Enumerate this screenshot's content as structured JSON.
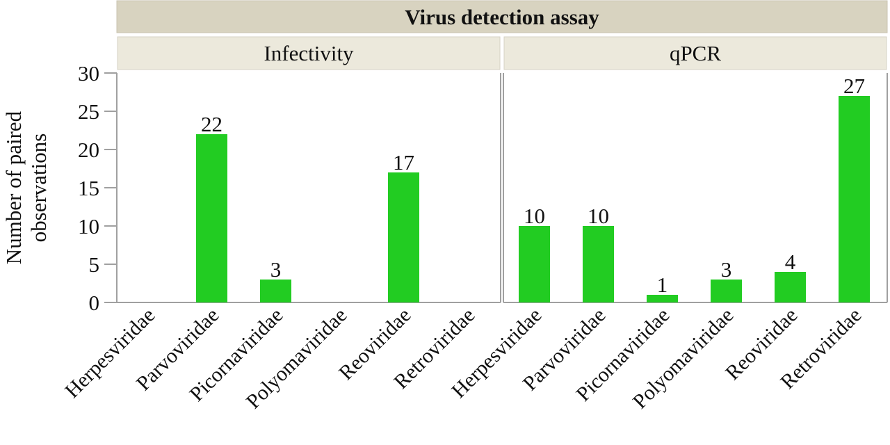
{
  "chart_data": {
    "type": "bar",
    "title": "Virus detection assay",
    "ylabel": "Number of paired observations",
    "ylabel_lines": [
      "Number of paired",
      "observations"
    ],
    "xlabel": "",
    "ylim": [
      0,
      30
    ],
    "yticks": [
      0,
      5,
      10,
      15,
      20,
      25,
      30
    ],
    "bar_color": "#22cc22",
    "categories": [
      "Herpesviridae",
      "Parvoviridae",
      "Picornaviridae",
      "Polyomaviridae",
      "Reoviridae",
      "Retroviridae"
    ],
    "panels": [
      {
        "name": "Infectivity",
        "values": [
          0,
          22,
          3,
          0,
          17,
          0
        ]
      },
      {
        "name": "qPCR",
        "values": [
          10,
          10,
          1,
          3,
          4,
          27
        ]
      }
    ],
    "grid": false,
    "legend": "none"
  },
  "colors": {
    "header_bg": "#d8d3c0",
    "facet_bg": "#ece9dc",
    "axis": "#a0a0a0"
  }
}
